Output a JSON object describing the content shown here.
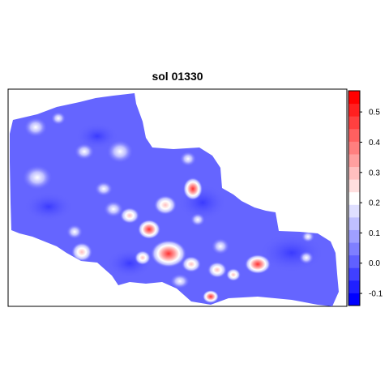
{
  "title": "sol 01330",
  "colorbar": {
    "min": -0.14,
    "max": 0.57,
    "ticks": [
      {
        "value": 0.5,
        "label": "0.5"
      },
      {
        "value": 0.4,
        "label": "0.4"
      },
      {
        "value": 0.3,
        "label": "0.3"
      },
      {
        "value": 0.2,
        "label": "0.2"
      },
      {
        "value": 0.1,
        "label": "0.1"
      },
      {
        "value": 0.0,
        "label": "0.0"
      },
      {
        "value": -0.1,
        "label": "-0.1"
      }
    ],
    "colors": [
      "#0000ff",
      "#2020ff",
      "#4040ff",
      "#6060ff",
      "#7f7fff",
      "#9f9fff",
      "#bfbfff",
      "#dfdfff",
      "#ffffff",
      "#ffdfdf",
      "#ffbfbf",
      "#ff9f9f",
      "#ff7f7f",
      "#ff6060",
      "#ff4040",
      "#ff2020",
      "#ff0000"
    ]
  }
}
